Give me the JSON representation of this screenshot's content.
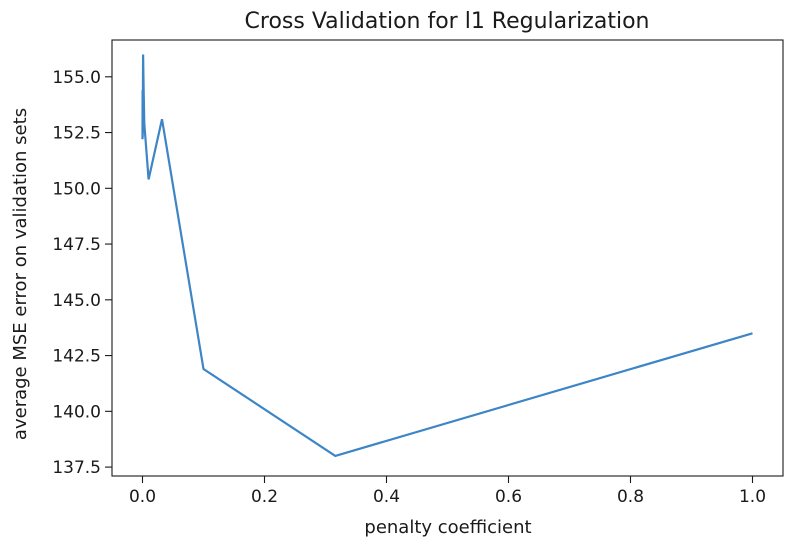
{
  "chart_data": {
    "type": "line",
    "title": "Cross Validation for l1 Regularization",
    "xlabel": "penalty coefficient",
    "ylabel": "average MSE error on validation sets",
    "xlim": [
      -0.05,
      1.05
    ],
    "ylim": [
      137.1,
      156.65
    ],
    "x_ticks": [
      0.0,
      0.2,
      0.4,
      0.6,
      0.8,
      1.0
    ],
    "x_tick_labels": [
      "0.0",
      "0.2",
      "0.4",
      "0.6",
      "0.8",
      "1.0"
    ],
    "y_ticks": [
      137.5,
      140.0,
      142.5,
      145.0,
      147.5,
      150.0,
      152.5,
      155.0
    ],
    "y_tick_labels": [
      "137.5",
      "140.0",
      "142.5",
      "145.0",
      "147.5",
      "150.0",
      "152.5",
      "155.0"
    ],
    "grid": false,
    "legend": false,
    "series": [
      {
        "color": "#3d85c6",
        "x": [
          0.0,
          0.0001,
          0.0003,
          0.001,
          0.002,
          0.003,
          0.01,
          0.032,
          0.1,
          0.316,
          1.0
        ],
        "y": [
          152.2,
          154.4,
          152.3,
          156.0,
          154.3,
          152.9,
          150.4,
          153.1,
          141.9,
          138.0,
          143.5
        ]
      }
    ]
  }
}
